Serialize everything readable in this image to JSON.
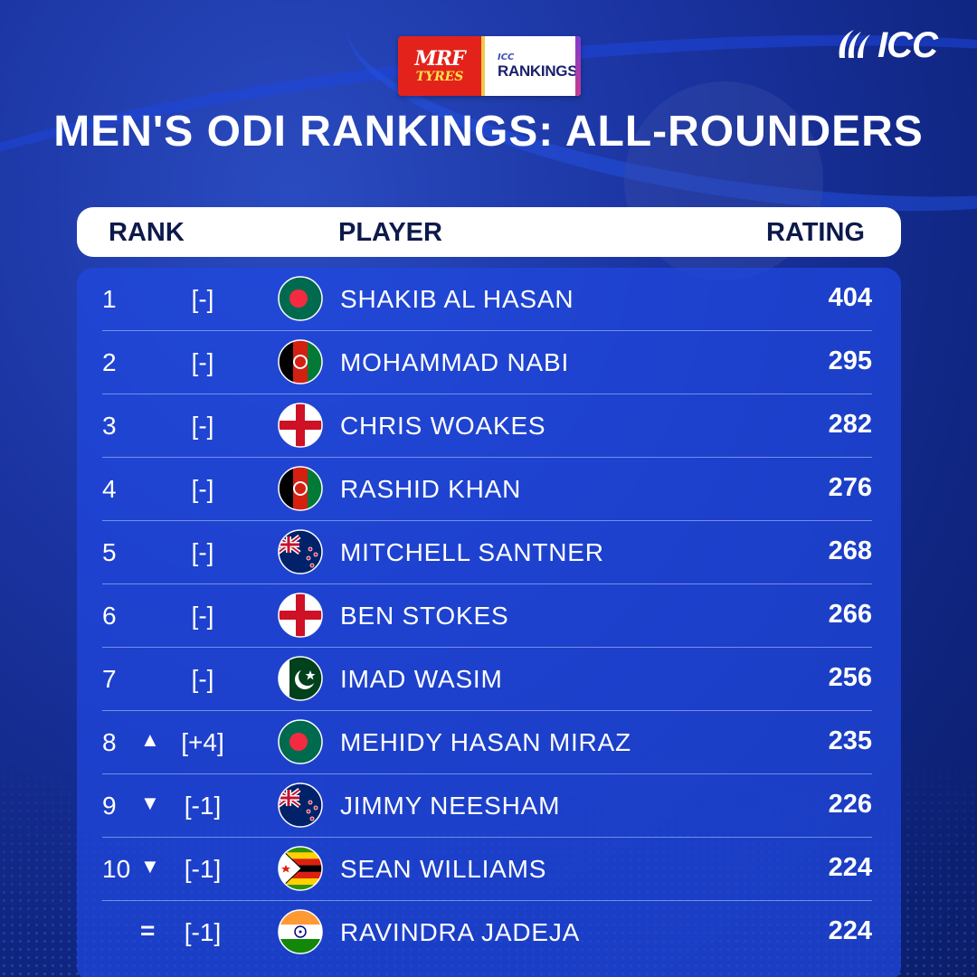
{
  "sponsor": {
    "mrf_top": "MRF",
    "mrf_bottom": "TYRES",
    "icc_small": "ICC",
    "rankings_label": "RANKINGS"
  },
  "brand": {
    "logo_text": "ICC"
  },
  "title": "MEN'S ODI RANKINGS: ALL-ROUNDERS",
  "header": {
    "rank": "RANK",
    "player": "PLAYER",
    "rating": "RATING"
  },
  "rows": [
    {
      "rank": "1",
      "arrow": "",
      "move": "[-]",
      "flag": "bangladesh",
      "name": "SHAKIB AL HASAN",
      "rating": "404"
    },
    {
      "rank": "2",
      "arrow": "",
      "move": "[-]",
      "flag": "afghanistan",
      "name": "MOHAMMAD NABI",
      "rating": "295"
    },
    {
      "rank": "3",
      "arrow": "",
      "move": "[-]",
      "flag": "england",
      "name": "CHRIS WOAKES",
      "rating": "282"
    },
    {
      "rank": "4",
      "arrow": "",
      "move": "[-]",
      "flag": "afghanistan",
      "name": "RASHID KHAN",
      "rating": "276"
    },
    {
      "rank": "5",
      "arrow": "",
      "move": "[-]",
      "flag": "new-zealand",
      "name": "MITCHELL SANTNER",
      "rating": "268"
    },
    {
      "rank": "6",
      "arrow": "",
      "move": "[-]",
      "flag": "england",
      "name": "BEN STOKES",
      "rating": "266"
    },
    {
      "rank": "7",
      "arrow": "",
      "move": "[-]",
      "flag": "pakistan",
      "name": "IMAD WASIM",
      "rating": "256"
    },
    {
      "rank": "8",
      "arrow": "▲",
      "move": "[+4]",
      "flag": "bangladesh",
      "name": "MEHIDY HASAN MIRAZ",
      "rating": "235"
    },
    {
      "rank": "9",
      "arrow": "▼",
      "move": "[-1]",
      "flag": "new-zealand",
      "name": "JIMMY NEESHAM",
      "rating": "226"
    },
    {
      "rank": "10",
      "arrow": "▼",
      "move": "[-1]",
      "flag": "zimbabwe",
      "name": "SEAN WILLIAMS",
      "rating": "224"
    },
    {
      "rank": "",
      "arrow": "=",
      "move": "[-1]",
      "flag": "india",
      "name": "RAVINDRA JADEJA",
      "rating": "224"
    }
  ],
  "colors": {
    "background": "#1a33a0",
    "table": "#2048e1",
    "header_text": "#0d1a4a",
    "mrf_red": "#e3231b"
  }
}
